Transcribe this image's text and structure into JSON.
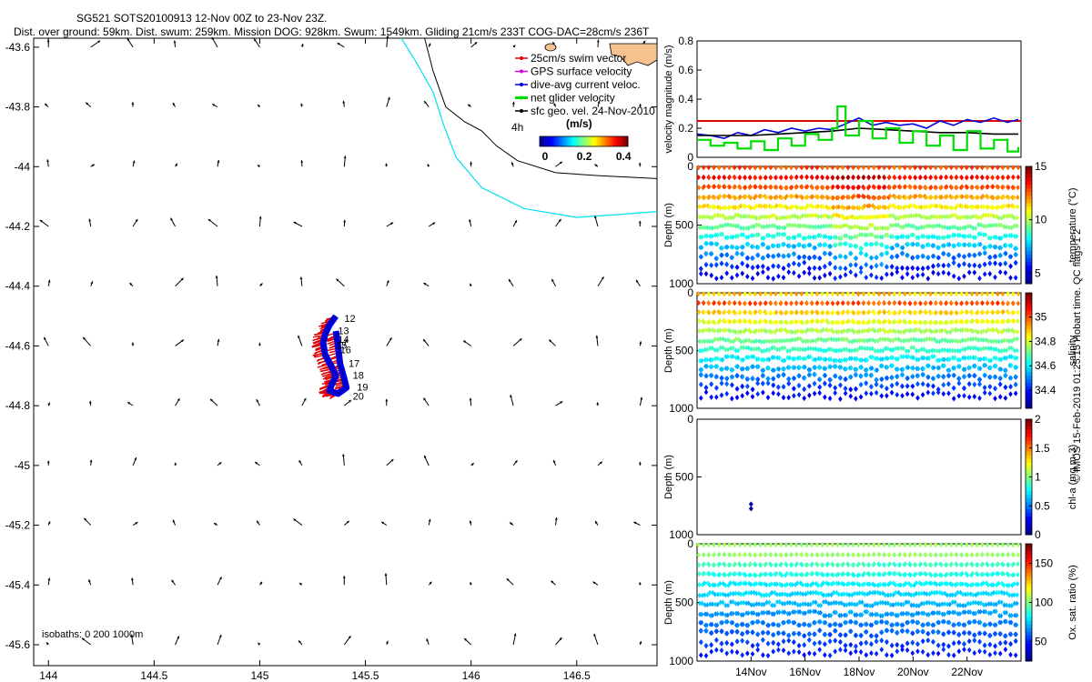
{
  "header": {
    "title": "SG521 SOTS20100913 12-Nov 00Z to 23-Nov 23Z.",
    "subtitle": "Dist. over ground: 59km. Dist. swum: 259km. Mission DOG: 928km. Swum: 1549km. Gliding 21cm/s 233T COG-DAC=28cm/s 236T"
  },
  "credit": "© IMOS 15-Feb-2019 01:25:15 Hobart time. QC flags 1  2",
  "map": {
    "type": "quiver-map",
    "x_ticks": [
      144,
      144.5,
      145,
      145.5,
      146,
      146.5
    ],
    "x_tick_labels": [
      "144",
      "144.5",
      "145",
      "145.5",
      "146",
      "146.5"
    ],
    "y_ticks": [
      -43.6,
      -43.8,
      -44,
      -44.2,
      -44.4,
      -44.6,
      -44.8,
      -45,
      -45.2,
      -45.4,
      -45.6
    ],
    "y_tick_labels": [
      "-43.6",
      "-43.8",
      "-44",
      "-44.2",
      "-44.4",
      "-44.6",
      "-44.8",
      "-45",
      "-45.2",
      "-45.4",
      "-45.6"
    ],
    "xlim": [
      143.93,
      146.88
    ],
    "ylim": [
      -45.67,
      -43.57
    ],
    "legend": {
      "items": [
        {
          "label": "25cm/s swim vector",
          "color": "#e00000"
        },
        {
          "label": "GPS surface velocity",
          "color": "#e000e0"
        },
        {
          "label": "dive-avg current veloc.",
          "color": "#0000e0"
        },
        {
          "label": "net glider velocity",
          "color": "#00dd00"
        },
        {
          "label": "sfc geo. vel. 24-Nov-2010",
          "color": "#000000"
        }
      ],
      "extra_label": "4h",
      "colorbar_title": "(m/s)",
      "colorbar_ticks": [
        "0",
        "0.2",
        "0.4"
      ]
    },
    "isobath_label": "isobaths: 0   200  1000m",
    "track_labels": [
      "12",
      "13",
      "14",
      "15",
      "16",
      "17",
      "18",
      "19",
      "20"
    ],
    "track": [
      [
        145.36,
        -44.5
      ],
      [
        145.33,
        -44.53
      ],
      [
        145.31,
        -44.56
      ],
      [
        145.3,
        -44.59
      ],
      [
        145.31,
        -44.63
      ],
      [
        145.34,
        -44.67
      ],
      [
        145.36,
        -44.7
      ],
      [
        145.34,
        -44.73
      ],
      [
        145.33,
        -44.75
      ],
      [
        145.37,
        -44.76
      ],
      [
        145.41,
        -44.74
      ],
      [
        145.4,
        -44.71
      ],
      [
        145.38,
        -44.66
      ],
      [
        145.37,
        -44.6
      ],
      [
        145.36,
        -44.55
      ]
    ],
    "isobath_1000m": [
      [
        145.78,
        -43.57
      ],
      [
        145.82,
        -43.68
      ],
      [
        145.88,
        -43.8
      ],
      [
        145.97,
        -43.85
      ],
      [
        146.05,
        -43.88
      ],
      [
        146.12,
        -43.93
      ],
      [
        146.22,
        -43.98
      ],
      [
        146.4,
        -44.02
      ],
      [
        146.6,
        -44.03
      ],
      [
        146.88,
        -44.04
      ]
    ],
    "isobath_200m": [
      [
        145.67,
        -43.57
      ],
      [
        145.74,
        -43.65
      ],
      [
        145.82,
        -43.75
      ],
      [
        145.87,
        -43.86
      ],
      [
        145.93,
        -43.97
      ],
      [
        146.05,
        -44.07
      ],
      [
        146.25,
        -44.14
      ],
      [
        146.5,
        -44.17
      ],
      [
        146.7,
        -44.16
      ],
      [
        146.88,
        -44.15
      ]
    ],
    "vectors": {
      "lons": [
        144.0,
        144.2,
        144.4,
        144.6,
        144.8,
        145.0,
        145.2,
        145.4,
        145.6,
        145.8,
        146.0,
        146.2,
        146.4,
        146.6,
        146.8
      ],
      "lats": [
        -43.6,
        -43.8,
        -44.0,
        -44.2,
        -44.4,
        -44.6,
        -44.8,
        -45.0,
        -45.2,
        -45.4,
        -45.6
      ]
    }
  },
  "chart_data": [
    {
      "type": "line",
      "ylabel": "velocity magnitude (m/s)",
      "ylim": [
        0,
        0.8
      ],
      "y_ticks": [
        0,
        0.2,
        0.4,
        0.6,
        0.8
      ],
      "series": [
        {
          "color": "#e00000",
          "x": [
            12,
            24
          ],
          "values": [
            0.25,
            0.25
          ]
        },
        {
          "color": "#0000e0",
          "x": [
            12,
            12.5,
            13,
            13.5,
            14,
            14.5,
            15,
            15.5,
            16,
            16.5,
            17,
            17.5,
            18,
            18.5,
            19,
            19.5,
            20,
            20.5,
            21,
            21.5,
            22,
            22.5,
            23,
            23.5,
            23.9
          ],
          "values": [
            0.16,
            0.15,
            0.13,
            0.17,
            0.15,
            0.19,
            0.17,
            0.2,
            0.18,
            0.2,
            0.19,
            0.23,
            0.27,
            0.22,
            0.24,
            0.22,
            0.23,
            0.2,
            0.25,
            0.22,
            0.26,
            0.24,
            0.27,
            0.24,
            0.26
          ]
        },
        {
          "color": "#000000",
          "x": [
            12,
            13,
            14,
            15,
            16,
            17,
            18,
            19,
            20,
            21,
            22,
            23,
            23.9
          ],
          "values": [
            0.15,
            0.15,
            0.15,
            0.16,
            0.17,
            0.18,
            0.2,
            0.19,
            0.18,
            0.17,
            0.17,
            0.16,
            0.16
          ]
        },
        {
          "color": "#00dd00",
          "x": [
            12,
            12.5,
            13,
            13.5,
            14,
            14.5,
            15,
            15.5,
            16,
            16.5,
            17,
            17.2,
            17.5,
            18,
            18.5,
            19,
            19.5,
            20,
            20.5,
            21,
            21.5,
            22,
            22.5,
            23,
            23.5,
            23.9
          ],
          "values": [
            0.12,
            0.08,
            0.1,
            0.06,
            0.11,
            0.05,
            0.13,
            0.08,
            0.16,
            0.12,
            0.2,
            0.35,
            0.15,
            0.25,
            0.13,
            0.2,
            0.1,
            0.18,
            0.08,
            0.15,
            0.05,
            0.18,
            0.06,
            0.12,
            0.04,
            0.07
          ]
        }
      ]
    },
    {
      "type": "scatter",
      "ylabel": "Depth (m)",
      "ylim": [
        1000,
        0
      ],
      "y_ticks": [
        0,
        500,
        1000
      ],
      "colorbar_label": "temperature (°C)",
      "colorbar_ticks": [
        5,
        10,
        15
      ],
      "crange": [
        4,
        15
      ]
    },
    {
      "type": "scatter",
      "ylabel": "Depth (m)",
      "ylim": [
        1000,
        0
      ],
      "y_ticks": [
        0,
        500,
        1000
      ],
      "colorbar_label": "salinity",
      "colorbar_ticks": [
        34.4,
        34.6,
        34.8,
        35
      ],
      "crange": [
        34.25,
        35.2
      ]
    },
    {
      "type": "scatter",
      "ylabel": "Depth (m)",
      "ylim": [
        1000,
        0
      ],
      "y_ticks": [
        0,
        500,
        1000
      ],
      "colorbar_label": "chl-a (mg m-3)",
      "colorbar_ticks": [
        0,
        0.5,
        1,
        1.5,
        2
      ],
      "crange": [
        0,
        2
      ],
      "points": [
        {
          "x": 14.0,
          "y": 735,
          "c": 0.05
        },
        {
          "x": 14.0,
          "y": 775,
          "c": 0.05
        }
      ]
    },
    {
      "type": "scatter",
      "ylabel": "Depth (m)",
      "ylim": [
        1000,
        0
      ],
      "y_ticks": [
        0,
        500,
        1000
      ],
      "colorbar_label": "Ox. sat. ratio (%)",
      "colorbar_ticks": [
        50,
        100,
        150
      ],
      "crange": [
        25,
        175
      ],
      "x_ticks": [
        14,
        16,
        18,
        20,
        22
      ],
      "x_tick_labels": [
        "14Nov",
        "16Nov",
        "18Nov",
        "20Nov",
        "22Nov"
      ],
      "xlim": [
        12,
        24
      ]
    }
  ]
}
